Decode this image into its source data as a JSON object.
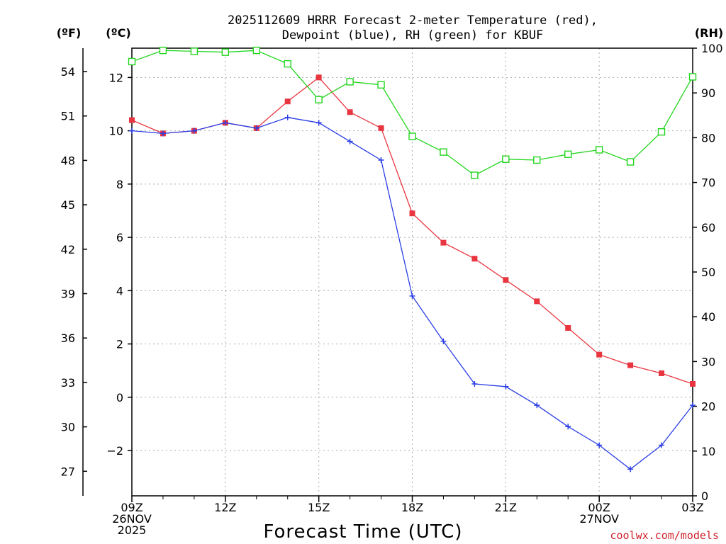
{
  "chart_data": {
    "type": "line",
    "title_line1": "2025112609 HRRR Forecast 2-meter Temperature (red),",
    "title_line2": "Dewpoint (blue), RH (green) for KBUF",
    "xlabel": "Forecast Time (UTC)",
    "credit": "coolwx.com/models",
    "unit_f": "(ºF)",
    "unit_c": "(ºC)",
    "unit_rh": "(RH)",
    "x_hours": [
      0,
      1,
      2,
      3,
      4,
      5,
      6,
      7,
      8,
      9,
      10,
      11,
      12,
      13,
      14,
      15,
      16,
      17,
      18
    ],
    "xlim": [
      0,
      18
    ],
    "x_ticks": [
      {
        "hour": 0,
        "lines": [
          "09Z",
          "26NOV",
          "2025"
        ]
      },
      {
        "hour": 3,
        "lines": [
          "12Z"
        ]
      },
      {
        "hour": 6,
        "lines": [
          "15Z"
        ]
      },
      {
        "hour": 9,
        "lines": [
          "18Z"
        ]
      },
      {
        "hour": 12,
        "lines": [
          "21Z"
        ]
      },
      {
        "hour": 15,
        "lines": [
          "00Z",
          "27NOV"
        ]
      },
      {
        "hour": 18,
        "lines": [
          "03Z"
        ]
      }
    ],
    "ylim_c": [
      -3.7,
      13.1
    ],
    "y_ticks_c": [
      "-2",
      "0",
      "2",
      "4",
      "6",
      "8",
      "10",
      "12"
    ],
    "y_ticks_f": [
      "27",
      "30",
      "33",
      "36",
      "39",
      "42",
      "45",
      "48",
      "51",
      "54"
    ],
    "ylim_rh": [
      0,
      100
    ],
    "y_ticks_rh": [
      "0",
      "10",
      "20",
      "30",
      "40",
      "50",
      "60",
      "70",
      "80",
      "90",
      "100"
    ],
    "grid": true,
    "series": [
      {
        "name": "Temperature (°C)",
        "color": "#e8353f",
        "marker": "filled-square",
        "axis": "c",
        "values": [
          10.4,
          9.9,
          10.0,
          10.3,
          10.1,
          11.1,
          12.0,
          10.7,
          10.1,
          6.9,
          5.8,
          5.2,
          4.4,
          3.6,
          2.6,
          1.6,
          1.2,
          0.9,
          0.5
        ]
      },
      {
        "name": "Dewpoint (°C)",
        "color": "#2a3ee6",
        "marker": "plus",
        "axis": "c",
        "values": [
          10.0,
          9.9,
          10.0,
          10.3,
          10.1,
          10.5,
          10.3,
          9.6,
          8.9,
          3.8,
          2.1,
          0.5,
          0.4,
          -0.3,
          -1.1,
          -1.8,
          -2.7,
          -1.8,
          -0.3
        ]
      },
      {
        "name": "RH (%)",
        "color": "#22d61e",
        "marker": "open-square",
        "axis": "rh",
        "values": [
          97,
          99.5,
          99.3,
          99.1,
          99.5,
          96.5,
          88.5,
          92.5,
          91.8,
          80.3,
          76.8,
          71.6,
          75.2,
          75.0,
          76.3,
          77.3,
          74.6,
          81.3,
          93.6
        ]
      }
    ]
  }
}
